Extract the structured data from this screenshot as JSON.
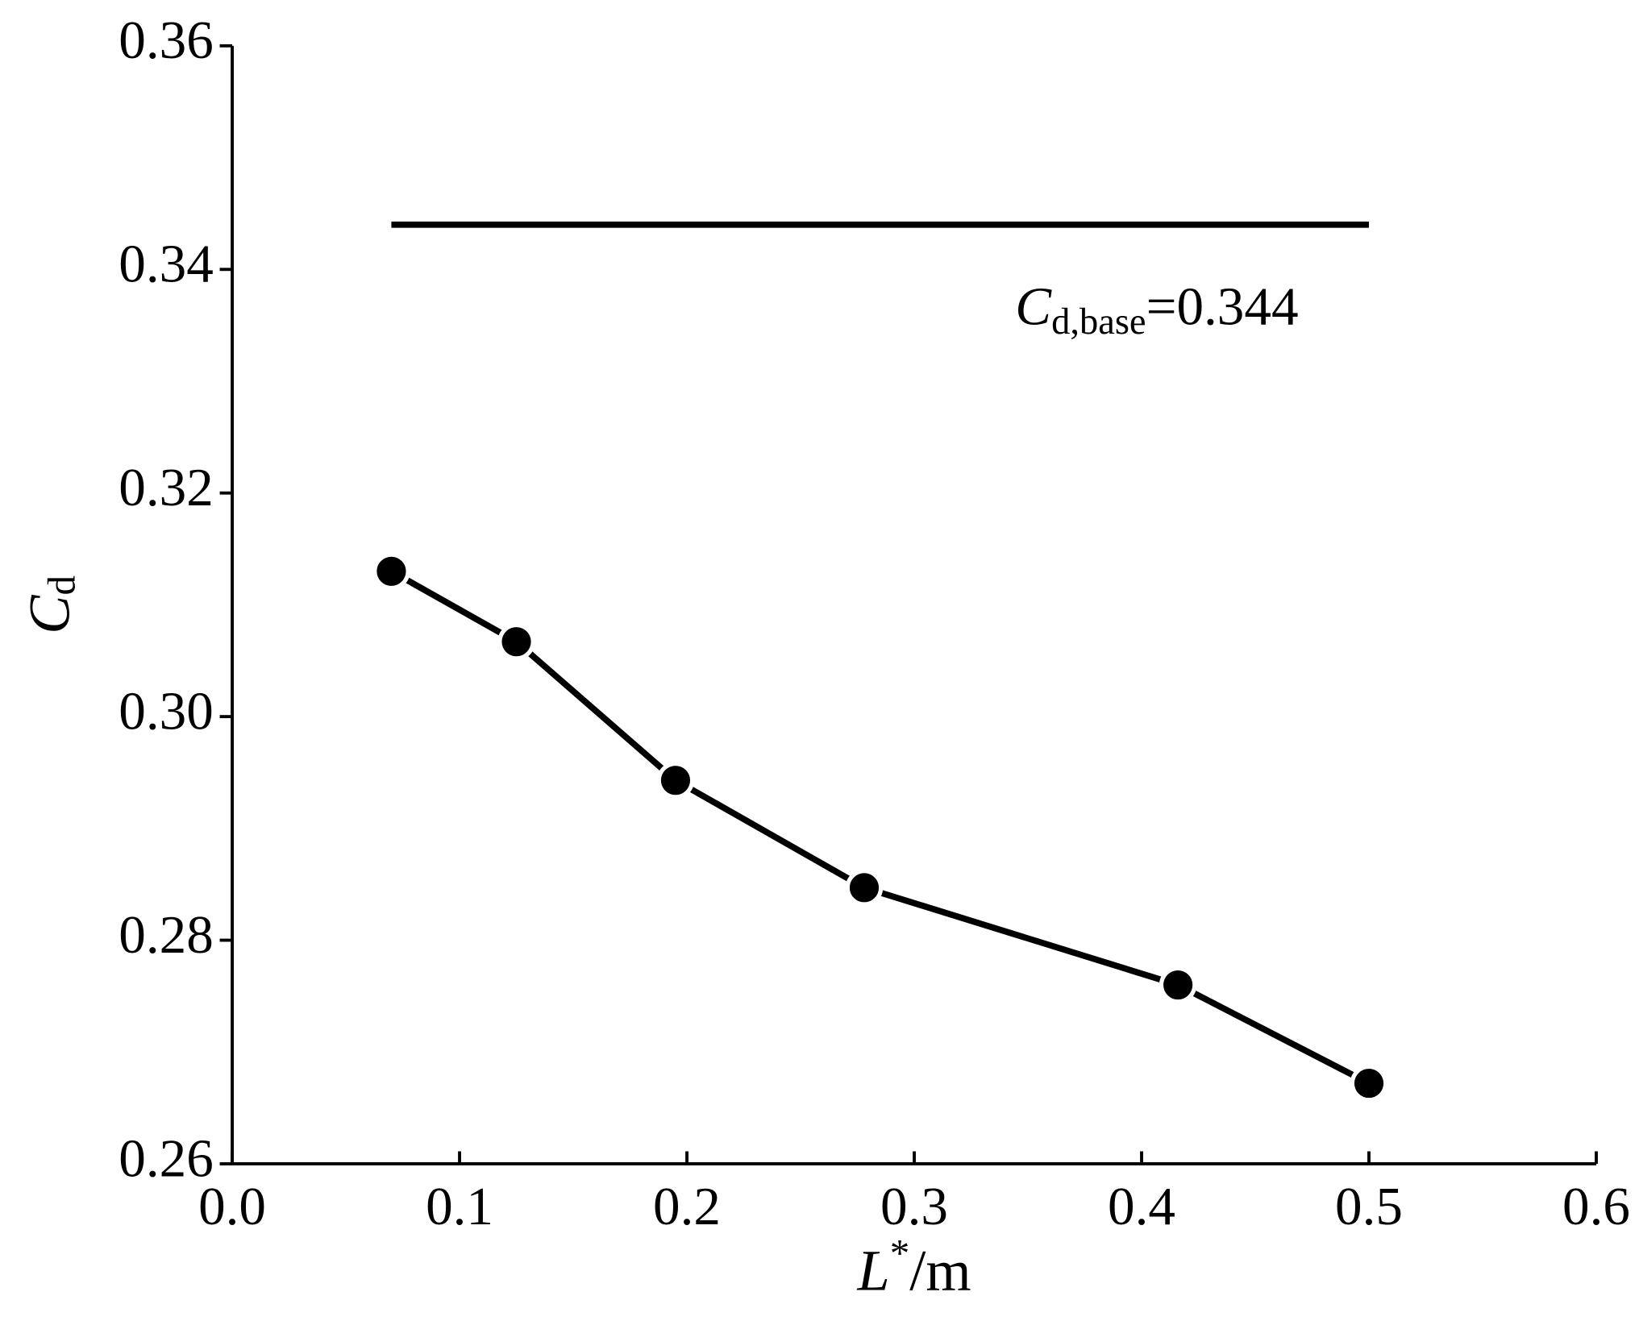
{
  "chart_data": {
    "type": "line",
    "x_label": {
      "main": "L",
      "sup": "*",
      "rest": "/m"
    },
    "y_label": {
      "main": "C",
      "sub": "d"
    },
    "annotation": {
      "main": "C",
      "sub": "d,base",
      "rest": "=0.344"
    },
    "series": [
      {
        "name": "Cd",
        "color": "#000000",
        "marker": true,
        "x": [
          0.07,
          0.125,
          0.195,
          0.278,
          0.416,
          0.5
        ],
        "values": [
          0.313,
          0.3067,
          0.2943,
          0.2847,
          0.276,
          0.2672
        ]
      },
      {
        "name": "Cd,base",
        "color": "#000000",
        "marker": false,
        "x": [
          0.07,
          0.5
        ],
        "values": [
          0.344,
          0.344
        ]
      }
    ],
    "xlim": [
      0,
      0.6
    ],
    "xticks": [
      {
        "value": 0,
        "label": "0.0"
      },
      0.1,
      0.2,
      0.3,
      0.4,
      0.5,
      0.6
    ],
    "ylim": [
      0.26,
      0.36
    ],
    "yticks": [
      0.26,
      0.28,
      {
        "value": 0.3,
        "label": "0.30"
      },
      0.32,
      0.34,
      0.36
    ]
  }
}
